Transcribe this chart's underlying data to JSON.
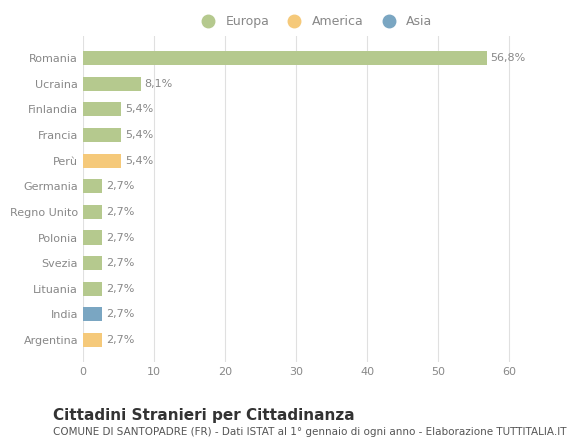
{
  "categories": [
    "Romania",
    "Ucraina",
    "Finlandia",
    "Francia",
    "Perù",
    "Germania",
    "Regno Unito",
    "Polonia",
    "Svezia",
    "Lituania",
    "India",
    "Argentina"
  ],
  "values": [
    56.8,
    8.1,
    5.4,
    5.4,
    5.4,
    2.7,
    2.7,
    2.7,
    2.7,
    2.7,
    2.7,
    2.7
  ],
  "labels": [
    "56,8%",
    "8,1%",
    "5,4%",
    "5,4%",
    "5,4%",
    "2,7%",
    "2,7%",
    "2,7%",
    "2,7%",
    "2,7%",
    "2,7%",
    "2,7%"
  ],
  "continents": [
    "Europa",
    "Europa",
    "Europa",
    "Europa",
    "America",
    "Europa",
    "Europa",
    "Europa",
    "Europa",
    "Europa",
    "Asia",
    "America"
  ],
  "colors": {
    "Europa": "#b5c98e",
    "America": "#f5c97a",
    "Asia": "#7aa6c2"
  },
  "legend_items": [
    {
      "label": "Europa",
      "color": "#b5c98e"
    },
    {
      "label": "America",
      "color": "#f5c97a"
    },
    {
      "label": "Asia",
      "color": "#7aa6c2"
    }
  ],
  "xlim": [
    0,
    65
  ],
  "xticks": [
    0,
    10,
    20,
    30,
    40,
    50,
    60
  ],
  "title": "Cittadini Stranieri per Cittadinanza",
  "subtitle": "COMUNE DI SANTOPADRE (FR) - Dati ISTAT al 1° gennaio di ogni anno - Elaborazione TUTTITALIA.IT",
  "background_color": "#ffffff",
  "grid_color": "#e0e0e0",
  "bar_height": 0.55,
  "title_fontsize": 11,
  "subtitle_fontsize": 7.5,
  "label_fontsize": 8,
  "tick_fontsize": 8,
  "legend_fontsize": 9,
  "label_color": "#888888",
  "tick_color": "#888888"
}
